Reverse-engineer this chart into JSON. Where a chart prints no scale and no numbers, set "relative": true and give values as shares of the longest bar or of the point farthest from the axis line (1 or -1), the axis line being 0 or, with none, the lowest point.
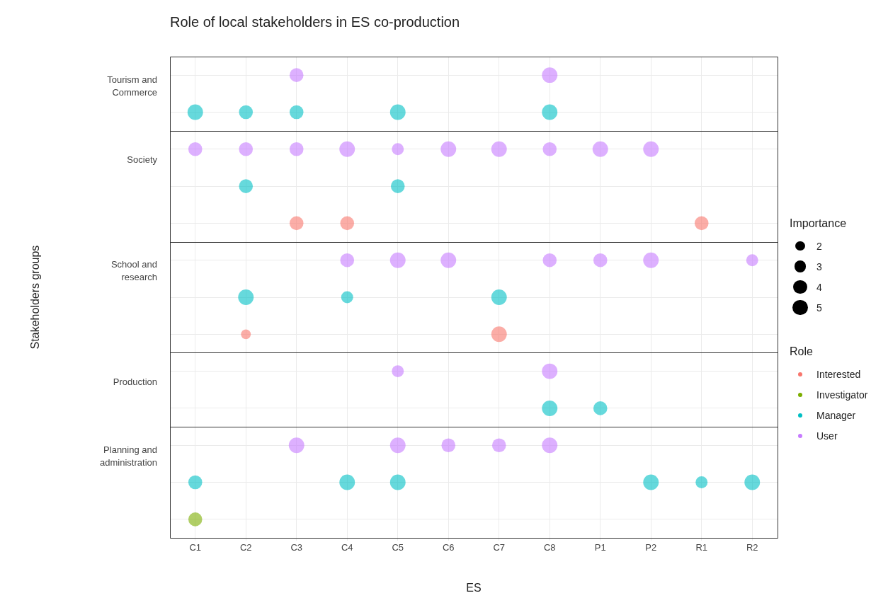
{
  "chart_data": {
    "type": "bubble",
    "title": "Role of local stakeholders in ES co-production",
    "xlabel": "ES",
    "legend": "right",
    "legend_title": "Role",
    "size_legend": [
      2,
      3,
      4,
      5
    ],
    "annotations": [
      "Tourism and Commerce",
      "Society",
      "School and research",
      "Production",
      "Planning and administration",
      "Importance",
      "Stakeholders groups"
    ],
    "categories": [
      "C1",
      "C2",
      "C3",
      "C4",
      "C5",
      "C6",
      "C7",
      "C8",
      "P1",
      "P2",
      "R1",
      "R2"
    ],
    "relative": true,
    "grid": true,
    "marker": "circle",
    "tick_labels": "x",
    "ref_lines": [
      {
        "axis": "y",
        "value": 0.88,
        "color": "#333333"
      },
      {
        "axis": "y",
        "value": 0.64,
        "color": "#333333"
      },
      {
        "axis": "y",
        "value": 0.4,
        "color": "#333333"
      },
      {
        "axis": "y",
        "value": 0.24,
        "color": "#333333"
      }
    ],
    "series": [
      {
        "name": "Interested",
        "color": "#f8766d",
        "x": [
          "C3",
          "C4",
          "R1",
          "C2",
          "C7"
        ],
        "values": [
          0.68,
          0.68,
          0.68,
          0.44,
          0.44
        ],
        "sizes": [
          4,
          4,
          4,
          2,
          5
        ]
      },
      {
        "name": "Investigator",
        "color": "#7cae00",
        "x": [
          "C1"
        ],
        "values": [
          0.04
        ],
        "sizes": [
          4
        ]
      },
      {
        "name": "Manager",
        "color": "#00bfc4",
        "x": [
          "C1",
          "C2",
          "C3",
          "C5",
          "C8",
          "C2",
          "C5",
          "C2",
          "C4",
          "C7",
          "C8",
          "P1",
          "C1",
          "C4",
          "C5",
          "P2",
          "R1",
          "R2"
        ],
        "values": [
          0.92,
          0.92,
          0.92,
          0.92,
          0.92,
          0.76,
          0.76,
          0.52,
          0.52,
          0.52,
          0.28,
          0.28,
          0.12,
          0.12,
          0.12,
          0.12,
          0.12,
          0.12
        ],
        "sizes": [
          5,
          4,
          4,
          5,
          5,
          4,
          4,
          5,
          3,
          5,
          5,
          4,
          4,
          5,
          5,
          5,
          3,
          5
        ]
      },
      {
        "name": "User",
        "color": "#c77cff",
        "x": [
          "C3",
          "C8",
          "C1",
          "C2",
          "C3",
          "C4",
          "C5",
          "C6",
          "C7",
          "C8",
          "P1",
          "P2",
          "C4",
          "C5",
          "C6",
          "C8",
          "P1",
          "P2",
          "R2",
          "C5",
          "C8",
          "C3",
          "C5",
          "C6",
          "C7",
          "C8"
        ],
        "values": [
          1,
          1,
          0.84,
          0.84,
          0.84,
          0.84,
          0.84,
          0.84,
          0.84,
          0.84,
          0.84,
          0.84,
          0.6,
          0.6,
          0.6,
          0.6,
          0.6,
          0.6,
          0.6,
          0.36,
          0.36,
          0.2,
          0.2,
          0.2,
          0.2,
          0.2
        ],
        "sizes": [
          4,
          5,
          4,
          4,
          4,
          5,
          3,
          5,
          5,
          4,
          5,
          5,
          4,
          5,
          5,
          4,
          4,
          5,
          3,
          3,
          5,
          5,
          5,
          4,
          4,
          5
        ]
      }
    ]
  }
}
